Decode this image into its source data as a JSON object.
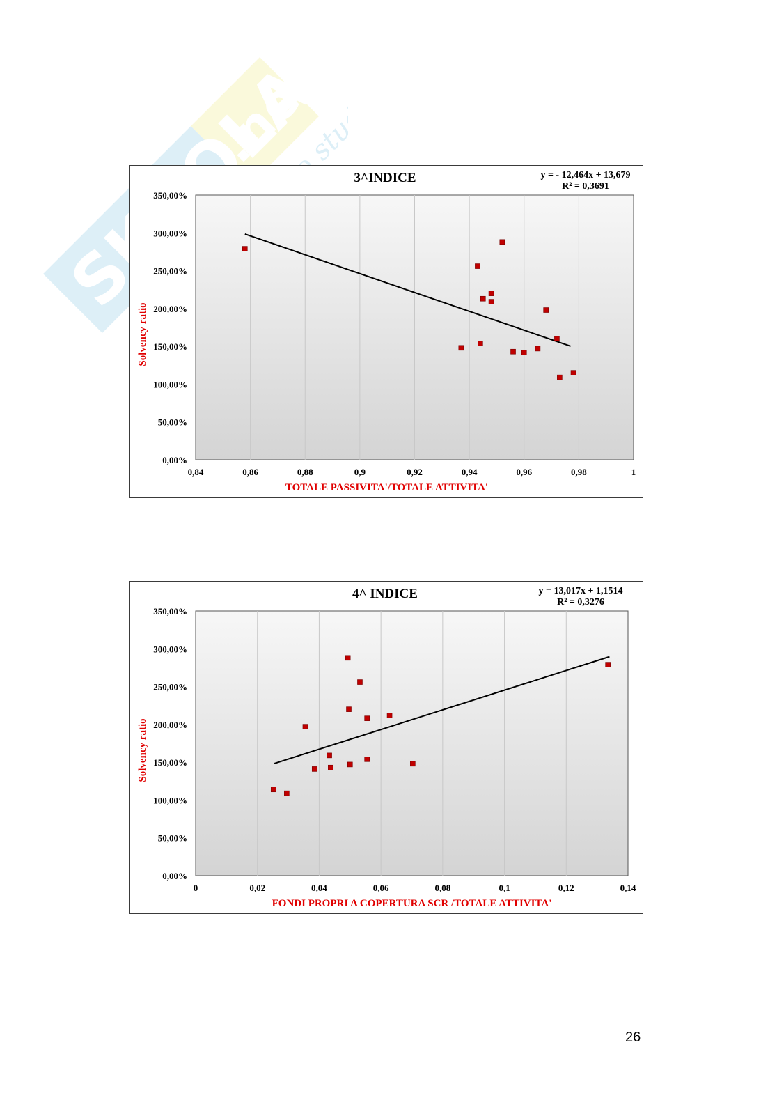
{
  "page": {
    "number": "26"
  },
  "watermark": {
    "brand": "Skuola.net",
    "tagline": "il portale dello studente"
  },
  "colors": {
    "marker": "#c00000",
    "axis_label": "#e00000",
    "trendline": "#000000"
  },
  "chart_data": [
    {
      "type": "scatter",
      "title": "3^INDICE",
      "equation": "y = - 12,464x + 13,679",
      "r_squared": "R² = 0,3691",
      "xlabel": "TOTALE PASSIVITA'/TOTALE ATTIVITA'",
      "ylabel": "Solvency ratio",
      "xlim": [
        0.84,
        1.0
      ],
      "ylim": [
        0,
        3.5
      ],
      "x_ticks": [
        "0,84",
        "0,86",
        "0,88",
        "0,9",
        "0,92",
        "0,94",
        "0,96",
        "0,98",
        "1"
      ],
      "y_ticks": [
        "0,00%",
        "50,00%",
        "100,00%",
        "150,00%",
        "200,00%",
        "250,00%",
        "300,00%",
        "350,00%"
      ],
      "trendline": {
        "slope": -12.464,
        "intercept": 13.679,
        "x_range": [
          0.858,
          0.977
        ]
      },
      "grid": "vertical",
      "points": [
        {
          "x": 0.858,
          "y": 2.79
        },
        {
          "x": 0.937,
          "y": 1.48
        },
        {
          "x": 0.943,
          "y": 2.56
        },
        {
          "x": 0.944,
          "y": 1.54
        },
        {
          "x": 0.945,
          "y": 2.13
        },
        {
          "x": 0.948,
          "y": 2.2
        },
        {
          "x": 0.948,
          "y": 2.09
        },
        {
          "x": 0.952,
          "y": 2.88
        },
        {
          "x": 0.956,
          "y": 1.43
        },
        {
          "x": 0.96,
          "y": 1.42
        },
        {
          "x": 0.965,
          "y": 1.47
        },
        {
          "x": 0.968,
          "y": 1.98
        },
        {
          "x": 0.972,
          "y": 1.6
        },
        {
          "x": 0.973,
          "y": 1.09
        },
        {
          "x": 0.978,
          "y": 1.15
        }
      ]
    },
    {
      "type": "scatter",
      "title": "4^ INDICE",
      "equation": "y = 13,017x + 1,1514",
      "r_squared": "R² = 0,3276",
      "xlabel": "FONDI PROPRI A COPERTURA SCR /TOTALE ATTIVITA'",
      "ylabel": "Solvency ratio",
      "xlim": [
        0,
        0.14
      ],
      "ylim": [
        0,
        3.5
      ],
      "x_ticks": [
        "0",
        "0,02",
        "0,04",
        "0,06",
        "0,08",
        "0,1",
        "0,12",
        "0,14"
      ],
      "y_ticks": [
        "0,00%",
        "50,00%",
        "100,00%",
        "150,00%",
        "200,00%",
        "250,00%",
        "300,00%",
        "350,00%"
      ],
      "trendline": {
        "slope": 13.017,
        "intercept": 1.1514,
        "x_range": [
          0.0255,
          0.134
        ]
      },
      "grid": "vertical",
      "points": [
        {
          "x": 0.0252,
          "y": 1.14
        },
        {
          "x": 0.0295,
          "y": 1.09
        },
        {
          "x": 0.0355,
          "y": 1.97
        },
        {
          "x": 0.0385,
          "y": 1.41
        },
        {
          "x": 0.0433,
          "y": 1.59
        },
        {
          "x": 0.0437,
          "y": 1.43
        },
        {
          "x": 0.0493,
          "y": 2.88
        },
        {
          "x": 0.0496,
          "y": 2.2
        },
        {
          "x": 0.05,
          "y": 1.47
        },
        {
          "x": 0.0532,
          "y": 2.56
        },
        {
          "x": 0.0555,
          "y": 2.08
        },
        {
          "x": 0.0555,
          "y": 1.54
        },
        {
          "x": 0.0628,
          "y": 2.12
        },
        {
          "x": 0.0703,
          "y": 1.48
        },
        {
          "x": 0.1335,
          "y": 2.79
        }
      ]
    }
  ]
}
